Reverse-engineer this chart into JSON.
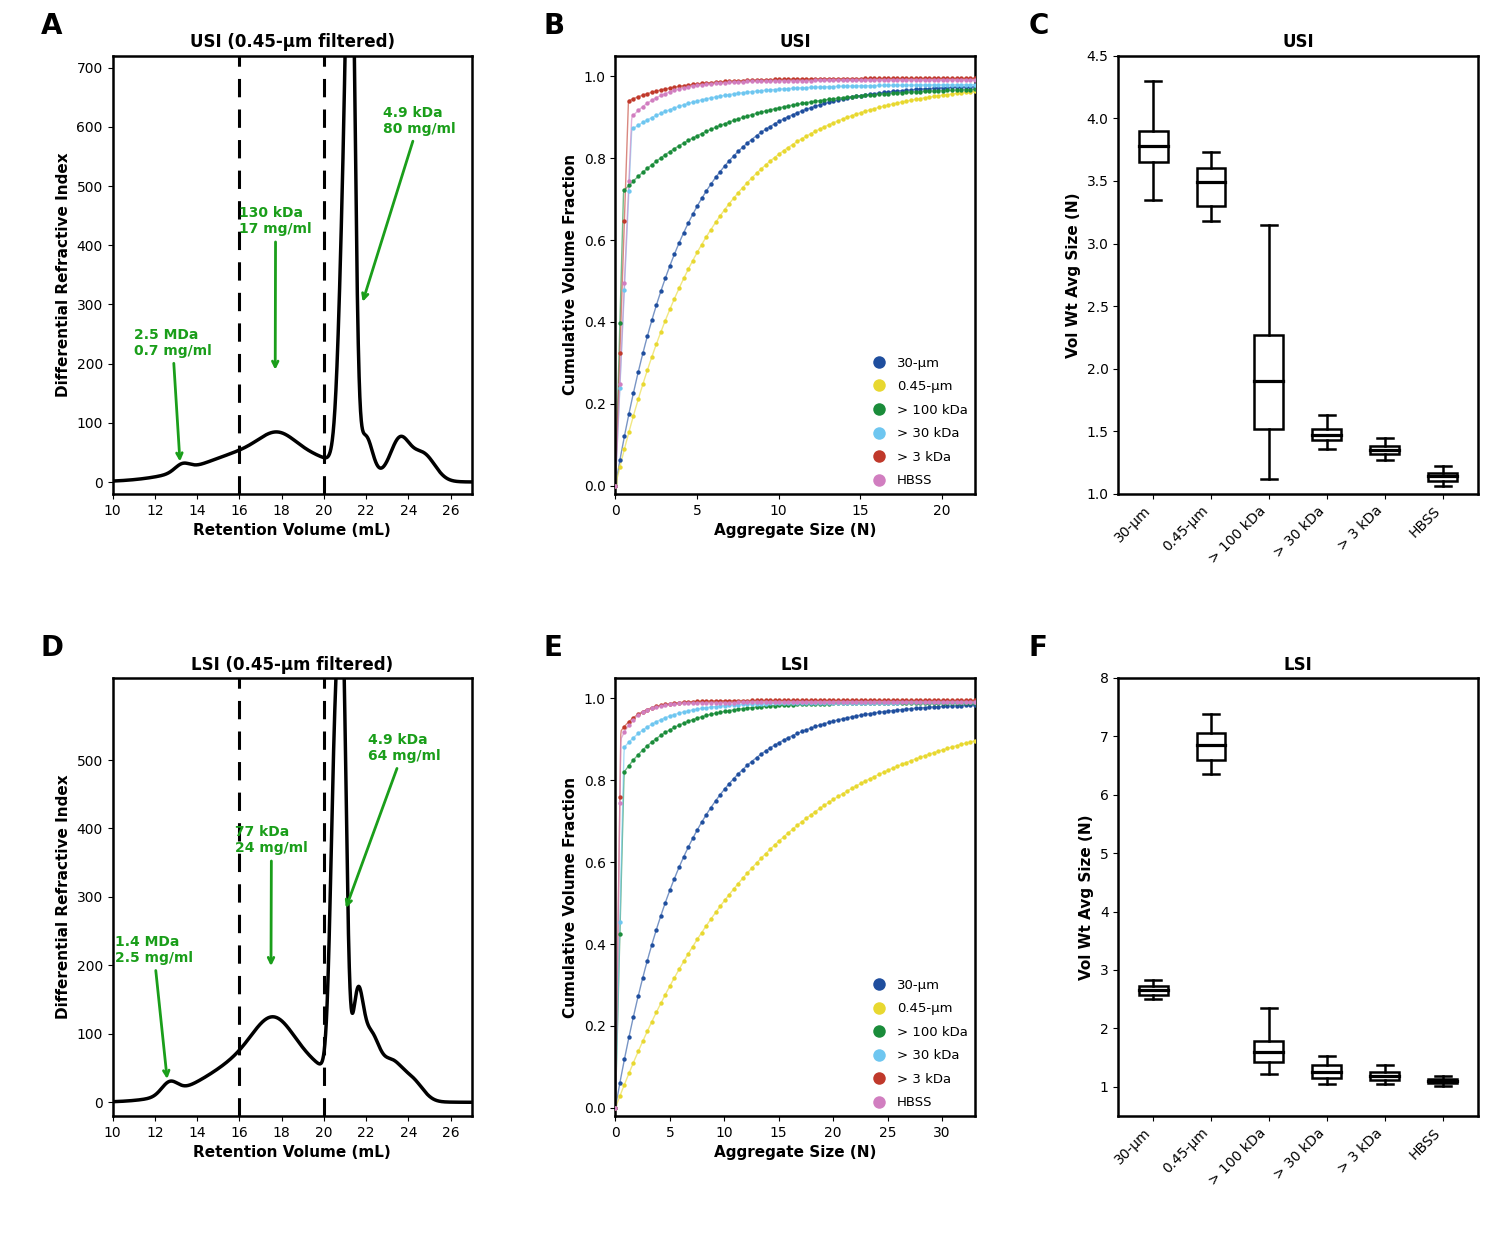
{
  "panel_A": {
    "title": "USI (0.45-μm filtered)",
    "xlabel": "Retention Volume (mL)",
    "ylabel": "Differential Refractive Index",
    "xlim": [
      10,
      27
    ],
    "ylim": [
      -20,
      720
    ],
    "yticks": [
      0,
      100,
      200,
      300,
      400,
      500,
      600,
      700
    ],
    "xticks": [
      10,
      12,
      14,
      16,
      18,
      20,
      22,
      24,
      26
    ],
    "dashed_lines": [
      16,
      20
    ]
  },
  "panel_D": {
    "title": "LSI (0.45-μm filtered)",
    "xlabel": "Retention Volume (mL)",
    "ylabel": "Differential Refractive Index",
    "xlim": [
      10,
      27
    ],
    "ylim": [
      -20,
      620
    ],
    "yticks": [
      0,
      100,
      200,
      300,
      400,
      500
    ],
    "xticks": [
      10,
      12,
      14,
      16,
      18,
      20,
      22,
      24,
      26
    ],
    "dashed_lines": [
      16,
      20
    ]
  },
  "panel_B": {
    "title": "USI",
    "xlabel": "Aggregate Size (N)",
    "ylabel": "Cumulative Volume Fraction",
    "xlim": [
      0,
      22
    ],
    "ylim": [
      -0.02,
      1.05
    ],
    "xticks": [
      0,
      5,
      10,
      15,
      20
    ],
    "yticks": [
      0.0,
      0.2,
      0.4,
      0.6,
      0.8,
      1.0
    ]
  },
  "panel_E": {
    "title": "LSI",
    "xlabel": "Aggregate Size (N)",
    "ylabel": "Cumulative Volume Fraction",
    "xlim": [
      0,
      33
    ],
    "ylim": [
      -0.02,
      1.05
    ],
    "xticks": [
      0,
      5,
      10,
      15,
      20,
      25,
      30
    ],
    "yticks": [
      0.0,
      0.2,
      0.4,
      0.6,
      0.8,
      1.0
    ]
  },
  "panel_C": {
    "title": "USI",
    "ylabel": "Vol Wt Avg Size (N)",
    "ylim": [
      1.0,
      4.5
    ],
    "yticks": [
      1.0,
      1.5,
      2.0,
      2.5,
      3.0,
      3.5,
      4.0,
      4.5
    ],
    "categories": [
      "30-μm",
      "0.45-μm",
      "> 100 kDa",
      "> 30 kDa",
      "> 3 kDa",
      "HBSS"
    ],
    "box_data": [
      {
        "med": 3.78,
        "q1": 3.65,
        "q3": 3.9,
        "whislo": 3.35,
        "whishi": 4.3
      },
      {
        "med": 3.49,
        "q1": 3.3,
        "q3": 3.6,
        "whislo": 3.18,
        "whishi": 3.73
      },
      {
        "med": 1.9,
        "q1": 1.52,
        "q3": 2.27,
        "whislo": 1.12,
        "whishi": 3.15
      },
      {
        "med": 1.47,
        "q1": 1.43,
        "q3": 1.52,
        "whislo": 1.36,
        "whishi": 1.63
      },
      {
        "med": 1.35,
        "q1": 1.32,
        "q3": 1.38,
        "whislo": 1.27,
        "whishi": 1.45
      },
      {
        "med": 1.14,
        "q1": 1.1,
        "q3": 1.17,
        "whislo": 1.06,
        "whishi": 1.22
      }
    ]
  },
  "panel_F": {
    "title": "LSI",
    "ylabel": "Vol Wt Avg Size (N)",
    "ylim": [
      0.5,
      8.0
    ],
    "yticks": [
      1,
      2,
      3,
      4,
      5,
      6,
      7,
      8
    ],
    "categories": [
      "30-μm",
      "0.45-μm",
      "> 100 kDa",
      "> 30 kDa",
      "> 3 kDa",
      "HBSS"
    ],
    "box_data": [
      {
        "med": 2.65,
        "q1": 2.58,
        "q3": 2.72,
        "whislo": 2.5,
        "whishi": 2.82
      },
      {
        "med": 6.85,
        "q1": 6.6,
        "q3": 7.05,
        "whislo": 6.35,
        "whishi": 7.38
      },
      {
        "med": 1.6,
        "q1": 1.42,
        "q3": 1.78,
        "whislo": 1.22,
        "whishi": 2.35
      },
      {
        "med": 1.25,
        "q1": 1.15,
        "q3": 1.38,
        "whislo": 1.05,
        "whishi": 1.52
      },
      {
        "med": 1.18,
        "q1": 1.12,
        "q3": 1.25,
        "whislo": 1.05,
        "whishi": 1.38
      },
      {
        "med": 1.1,
        "q1": 1.07,
        "q3": 1.13,
        "whislo": 1.02,
        "whishi": 1.18
      }
    ]
  },
  "legend_labels": [
    "30-μm",
    "0.45-μm",
    "> 100 kDa",
    "> 30 kDa",
    "> 3 kDa",
    "HBSS"
  ],
  "legend_colors": [
    "#1f4e9e",
    "#e8d830",
    "#1a8c3a",
    "#6ec6f0",
    "#c0392b",
    "#d17ec0"
  ],
  "green_color": "#1a9e1a",
  "label_fontsize": 11,
  "title_fontsize": 12,
  "tick_fontsize": 10,
  "annot_fontsize": 10
}
